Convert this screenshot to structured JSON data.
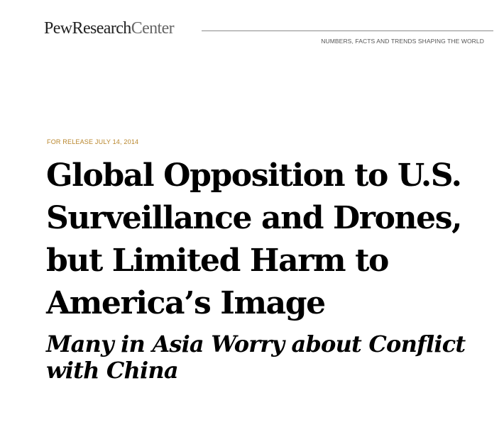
{
  "header": {
    "logo_bold": "PewResearch",
    "logo_light": "Center",
    "tagline": "NUMBERS, FACTS AND TRENDS SHAPING THE WORLD"
  },
  "release": {
    "text": "FOR RELEASE JULY 14, 2014"
  },
  "title": {
    "lines": [
      "Global Opposition to U.S.",
      "Surveillance and Drones,",
      "but Limited Harm to",
      "America’s Image"
    ]
  },
  "subtitle": {
    "lines": [
      "Many in Asia Worry about Conflict",
      "with China"
    ]
  },
  "colors": {
    "release_accent": "#b8862b",
    "title": "#000000",
    "logo": "#222222"
  }
}
